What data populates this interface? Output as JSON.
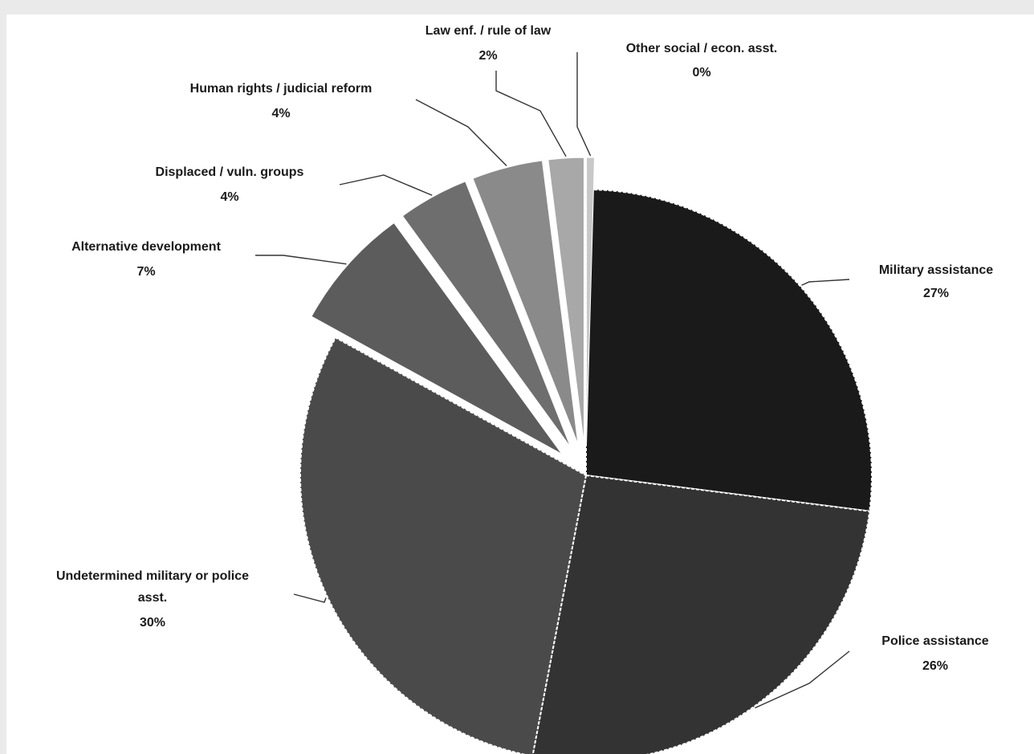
{
  "chart_data": {
    "type": "pie",
    "title": "",
    "slices": [
      {
        "label": "Military assistance",
        "value": 27,
        "percent_label": "27%",
        "color": "#1a1a1a"
      },
      {
        "label": "Police assistance",
        "value": 26,
        "percent_label": "26%",
        "color": "#333333"
      },
      {
        "label": "Undetermined military or police asst.",
        "value": 30,
        "percent_label": "30%",
        "color": "#4a4a4a"
      },
      {
        "label": "Alternative development",
        "value": 7,
        "percent_label": "7%",
        "color": "#5c5c5c"
      },
      {
        "label": "Displaced / vuln. groups",
        "value": 4,
        "percent_label": "4%",
        "color": "#6e6e6e"
      },
      {
        "label": "Human rights / judicial reform",
        "value": 4,
        "percent_label": "4%",
        "color": "#8a8a8a"
      },
      {
        "label": "Law enf. / rule of law",
        "value": 2,
        "percent_label": "2%",
        "color": "#a8a8a8"
      },
      {
        "label": "Other social / econ. asst.",
        "value": 0,
        "percent_label": "0%",
        "color": "#c8c8c8"
      }
    ],
    "exploded": [
      "Alternative development",
      "Displaced / vuln. groups",
      "Human rights / judicial reform",
      "Law enf. / rule of law",
      "Other social / econ. asst."
    ],
    "legend": "none"
  },
  "labels": {
    "military": {
      "line1": "Military assistance",
      "pct": "27%"
    },
    "police": {
      "line1": "Police assistance",
      "pct": "26%"
    },
    "undetermined": {
      "line1": "Undetermined military or police",
      "line2": "asst.",
      "pct": "30%"
    },
    "alternative": {
      "line1": "Alternative development",
      "pct": "7%"
    },
    "displaced": {
      "line1": "Displaced / vuln. groups",
      "pct": "4%"
    },
    "human_rights": {
      "line1": "Human rights / judicial reform",
      "pct": "4%"
    },
    "law_enf": {
      "line1": "Law enf. / rule of law",
      "pct": "2%"
    },
    "other": {
      "line1": "Other social / econ. asst.",
      "pct": "0%"
    }
  }
}
